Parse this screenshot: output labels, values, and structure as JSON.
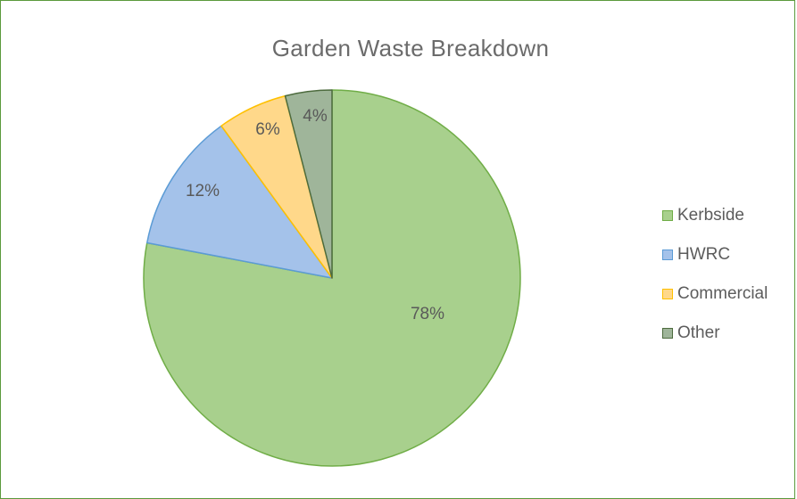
{
  "chart_data": {
    "type": "pie",
    "title": "Garden Waste Breakdown",
    "categories": [
      "Kerbside",
      "HWRC",
      "Commercial",
      "Other"
    ],
    "values": [
      78,
      12,
      6,
      4
    ],
    "labels": [
      "78%",
      "12%",
      "6%",
      "4%"
    ],
    "colors": {
      "fill": [
        "#a8d08d",
        "#a4c2ea",
        "#ffd88a",
        "#9fb59a"
      ],
      "stroke": [
        "#70ad47",
        "#5b9bd5",
        "#ffc000",
        "#4d6b3e"
      ]
    },
    "legend_position": "right",
    "start_angle": "12 o'clock, clockwise"
  }
}
